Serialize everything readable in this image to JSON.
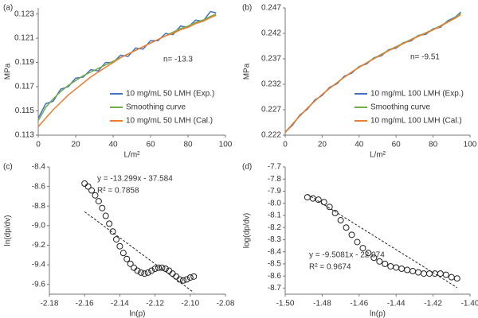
{
  "chart_data": [
    {
      "type": "line",
      "panel_label": "(a)",
      "x_label": "L/m²",
      "y_label": "MPa",
      "annotations": [
        "n= -13.3"
      ],
      "xlim": [
        0,
        100
      ],
      "xticks": [
        0,
        20,
        40,
        60,
        80,
        100
      ],
      "ylim": [
        0.113,
        0.1235
      ],
      "yticks": [
        0.113,
        0.115,
        0.117,
        0.119,
        0.121,
        0.123
      ],
      "legend": "lower right",
      "x": [
        0,
        4,
        8,
        12,
        16,
        20,
        24,
        28,
        32,
        36,
        40,
        44,
        48,
        52,
        56,
        60,
        64,
        68,
        72,
        76,
        80,
        84,
        88,
        92,
        95
      ],
      "series": [
        {
          "name": "10 mg/mL 50 LMH (Exp.)",
          "color": "#4472c4",
          "values": [
            0.1144,
            0.1156,
            0.1158,
            0.1168,
            0.117,
            0.1177,
            0.1178,
            0.1184,
            0.1183,
            0.119,
            0.119,
            0.1196,
            0.1195,
            0.1202,
            0.1201,
            0.1208,
            0.1208,
            0.1214,
            0.1213,
            0.122,
            0.1219,
            0.1225,
            0.1224,
            0.1232,
            0.1231
          ]
        },
        {
          "name": "Smoothing curve",
          "color": "#70ad47",
          "values": [
            0.1142,
            0.1153,
            0.116,
            0.1166,
            0.1171,
            0.1175,
            0.1179,
            0.1182,
            0.1185,
            0.1188,
            0.1191,
            0.1194,
            0.1197,
            0.12,
            0.1203,
            0.1206,
            0.1209,
            0.1212,
            0.1215,
            0.1218,
            0.122,
            0.1223,
            0.1225,
            0.1228,
            0.123
          ]
        },
        {
          "name": "10 mg/mL 50 LMH (Cal.)",
          "color": "#ed7d31",
          "values": [
            0.1137,
            0.1144,
            0.1151,
            0.1157,
            0.1163,
            0.1168,
            0.1173,
            0.1178,
            0.1182,
            0.1186,
            0.119,
            0.1194,
            0.1197,
            0.12,
            0.1203,
            0.1206,
            0.1209,
            0.1212,
            0.1214,
            0.1217,
            0.1219,
            0.1222,
            0.1224,
            0.1227,
            0.1229
          ]
        }
      ]
    },
    {
      "type": "line",
      "panel_label": "(b)",
      "x_label": "L/m²",
      "y_label": "MPa",
      "annotations": [
        "n= -9.51"
      ],
      "xlim": [
        0,
        100
      ],
      "xticks": [
        0,
        20,
        40,
        60,
        80,
        100
      ],
      "ylim": [
        0.222,
        0.247
      ],
      "yticks": [
        0.222,
        0.227,
        0.232,
        0.237,
        0.242,
        0.247
      ],
      "legend": "lower right",
      "x": [
        0,
        4,
        8,
        12,
        16,
        20,
        24,
        28,
        32,
        36,
        40,
        44,
        48,
        52,
        56,
        60,
        64,
        68,
        72,
        76,
        80,
        84,
        88,
        92,
        95
      ],
      "series": [
        {
          "name": "10 mg/mL 100 LMH (Exp.)",
          "color": "#4472c4",
          "values": [
            0.2226,
            0.224,
            0.226,
            0.2271,
            0.2289,
            0.2298,
            0.2314,
            0.2321,
            0.2336,
            0.2342,
            0.2355,
            0.236,
            0.2372,
            0.2376,
            0.2388,
            0.2391,
            0.2402,
            0.2405,
            0.2416,
            0.2418,
            0.2429,
            0.2432,
            0.2445,
            0.2452,
            0.2462
          ]
        },
        {
          "name": "Smoothing curve",
          "color": "#70ad47",
          "values": [
            0.2226,
            0.2242,
            0.2258,
            0.2273,
            0.2287,
            0.23,
            0.2312,
            0.2323,
            0.2334,
            0.2344,
            0.2354,
            0.2362,
            0.2371,
            0.2379,
            0.2387,
            0.2394,
            0.2401,
            0.2408,
            0.2415,
            0.2421,
            0.2428,
            0.2435,
            0.2443,
            0.2451,
            0.246
          ]
        },
        {
          "name": "10 mg/mL 100 LMH (Cal.)",
          "color": "#ed7d31",
          "values": [
            0.2225,
            0.2242,
            0.2258,
            0.2273,
            0.2287,
            0.23,
            0.2312,
            0.2323,
            0.2334,
            0.2344,
            0.2353,
            0.2362,
            0.237,
            0.2378,
            0.2386,
            0.2393,
            0.24,
            0.2407,
            0.2414,
            0.242,
            0.2427,
            0.2434,
            0.2442,
            0.245,
            0.2457
          ]
        }
      ]
    },
    {
      "type": "scatter",
      "panel_label": "(c)",
      "x_label": "ln(p)",
      "y_label": "ln(dp/dv)",
      "annotations": [
        "y = -13.299x - 37.584",
        "R² = 0.7858"
      ],
      "xlim": [
        -2.18,
        -2.08
      ],
      "xticks": [
        -2.18,
        -2.16,
        -2.14,
        -2.12,
        {
          "value": -2.1,
          "label": "-2.10"
        },
        -2.08
      ],
      "ylim": [
        -9.7,
        -8.4
      ],
      "yticks": [
        -8.4,
        -8.6,
        -8.8,
        {
          "value": -9,
          "label": "-9.0"
        },
        -9.2,
        -9.4,
        -9.6
      ],
      "x": [
        -2.16,
        -2.158,
        -2.156,
        -2.154,
        -2.152,
        -2.15,
        -2.148,
        -2.146,
        -2.144,
        -2.142,
        -2.14,
        -2.138,
        -2.136,
        -2.134,
        -2.132,
        -2.13,
        -2.128,
        -2.126,
        -2.124,
        -2.122,
        -2.12,
        -2.118,
        -2.116,
        -2.114,
        -2.112,
        -2.11,
        -2.108,
        -2.106,
        -2.104,
        -2.102,
        -2.1,
        -2.098
      ],
      "values": [
        -8.57,
        -8.6,
        -8.64,
        -8.69,
        -8.75,
        -8.82,
        -8.9,
        -8.98,
        -9.06,
        -9.14,
        -9.21,
        -9.28,
        -9.34,
        -9.39,
        -9.43,
        -9.46,
        -9.48,
        -9.49,
        -9.48,
        -9.46,
        -9.44,
        -9.43,
        -9.43,
        -9.44,
        -9.46,
        -9.49,
        -9.52,
        -9.55,
        -9.56,
        -9.55,
        -9.53,
        -9.52
      ],
      "trendline": {
        "x": [
          -2.16,
          -2.098
        ],
        "values": [
          -8.858,
          -9.683
        ]
      }
    },
    {
      "type": "scatter",
      "panel_label": "(d)",
      "x_label": "ln(p)",
      "y_label": "log(dp/dv)",
      "annotations": [
        "y = -9.5081x - 22.074",
        "R² = 0.9674"
      ],
      "xlim": [
        -1.5,
        -1.4
      ],
      "xticks": [
        {
          "value": -1.5,
          "label": "-1.50"
        },
        -1.48,
        -1.46,
        -1.44,
        -1.42,
        {
          "value": -1.4,
          "label": "-1.40"
        }
      ],
      "ylim": [
        -8.75,
        -7.7
      ],
      "yticks": [
        -7.7,
        -7.8,
        -7.9,
        {
          "value": -8,
          "label": "-8.0"
        },
        -8.1,
        -8.2,
        -8.3,
        -8.4,
        -8.5,
        -8.6,
        -8.7
      ],
      "x": [
        -1.488,
        -1.485,
        -1.482,
        -1.479,
        -1.476,
        -1.473,
        -1.47,
        -1.467,
        -1.464,
        -1.461,
        -1.458,
        -1.455,
        -1.452,
        -1.449,
        -1.446,
        -1.443,
        -1.44,
        -1.437,
        -1.434,
        -1.431,
        -1.428,
        -1.425,
        -1.422,
        -1.419,
        -1.416,
        -1.413,
        -1.41,
        -1.407
      ],
      "values": [
        -7.95,
        -7.96,
        -7.97,
        -7.99,
        -8.03,
        -8.08,
        -8.14,
        -8.2,
        -8.26,
        -8.32,
        -8.37,
        -8.41,
        -8.45,
        -8.48,
        -8.5,
        -8.52,
        -8.53,
        -8.54,
        -8.55,
        -8.56,
        -8.57,
        -8.58,
        -8.58,
        -8.58,
        -8.58,
        -8.59,
        -8.61,
        -8.62
      ],
      "trendline": {
        "x": [
          -1.488,
          -1.407
        ],
        "values": [
          -7.926,
          -8.696
        ]
      }
    }
  ]
}
